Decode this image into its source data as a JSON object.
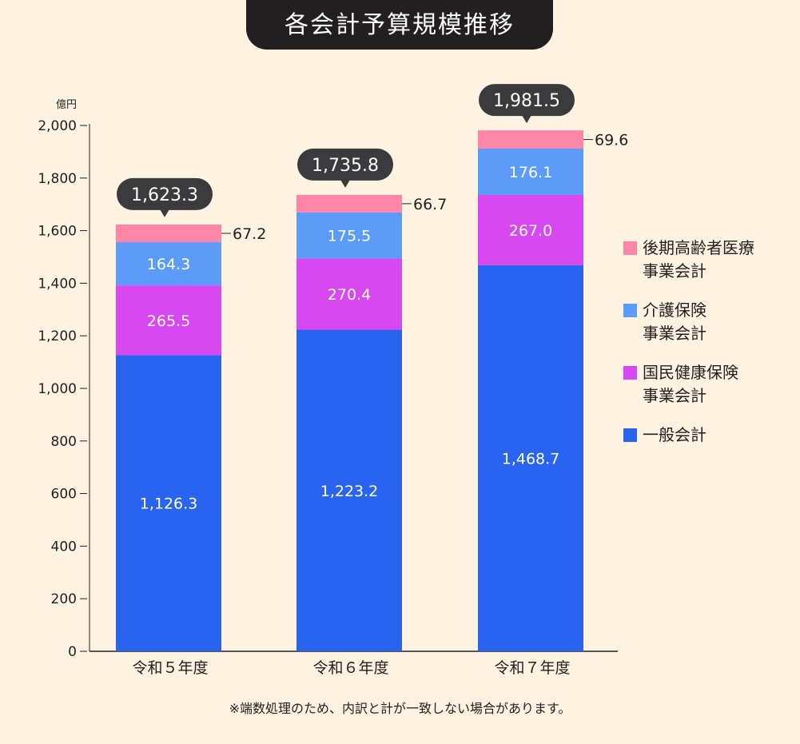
{
  "chart_data": {
    "type": "bar",
    "stacked": true,
    "title": "各会計予算規模推移",
    "ylabel": "億円",
    "ylim": [
      0,
      2000
    ],
    "yticks": [
      0,
      200,
      400,
      600,
      800,
      1000,
      1200,
      1400,
      1600,
      1800,
      2000
    ],
    "ytick_labels": [
      "0",
      "200",
      "400",
      "600",
      "800",
      "1,000",
      "1,200",
      "1,400",
      "1,600",
      "1,800",
      "2,000"
    ],
    "categories": [
      "令和５年度",
      "令和６年度",
      "令和７年度"
    ],
    "series": [
      {
        "name": "一般会計",
        "color": "#2864f0",
        "values": [
          1126.3,
          1223.2,
          1468.7
        ],
        "labels": [
          "1,126.3",
          "1,223.2",
          "1,468.7"
        ]
      },
      {
        "name": "国民健康保険事業会計",
        "color": "#d848f0",
        "values": [
          265.5,
          270.4,
          267.0
        ],
        "labels": [
          "265.5",
          "270.4",
          "267.0"
        ]
      },
      {
        "name": "介護保険事業会計",
        "color": "#5c9cf8",
        "values": [
          164.3,
          175.5,
          176.1
        ],
        "labels": [
          "164.3",
          "175.5",
          "176.1"
        ]
      },
      {
        "name": "後期高齢者医療事業会計",
        "color": "#fc86a8",
        "values": [
          67.2,
          66.7,
          69.6
        ],
        "labels": [
          "67.2",
          "66.7",
          "69.6"
        ]
      }
    ],
    "totals": [
      1623.3,
      1735.8,
      1981.5
    ],
    "total_labels": [
      "1,623.3",
      "1,735.8",
      "1,981.5"
    ]
  },
  "legend": [
    {
      "line1": "後期高齢者医療",
      "line2": "事業会計",
      "color": "#fc86a8"
    },
    {
      "line1": "介護保険",
      "line2": "事業会計",
      "color": "#5c9cf8"
    },
    {
      "line1": "国民健康保険",
      "line2": "事業会計",
      "color": "#d848f0"
    },
    {
      "line1": "一般会計",
      "line2": "",
      "color": "#2864f0"
    }
  ],
  "footnote": "※端数処理のため、内訳と計が一致しない場合があります。"
}
